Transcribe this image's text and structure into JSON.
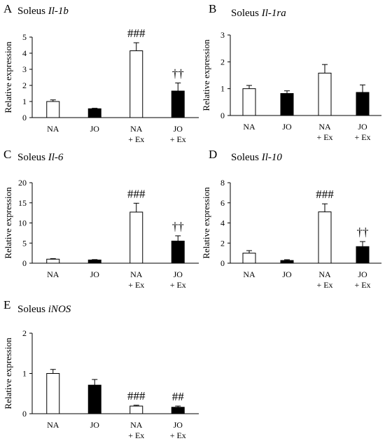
{
  "chart_data": [
    {
      "id": "A",
      "type": "bar",
      "panel_letter": "A",
      "title_prefix": "Soleus",
      "gene": "Il-1b",
      "ylabel": "Relative expression",
      "ylim": [
        0,
        5
      ],
      "yticks": [
        "0",
        "1",
        "2",
        "3",
        "4",
        "5"
      ],
      "categories": [
        [
          "NA",
          ""
        ],
        [
          "JO",
          ""
        ],
        [
          "NA",
          "+ Ex"
        ],
        [
          "JO",
          "+ Ex"
        ]
      ],
      "values": [
        1.0,
        0.55,
        4.15,
        1.65
      ],
      "errors": [
        0.1,
        0.03,
        0.5,
        0.5
      ],
      "fills": [
        "white",
        "black",
        "white",
        "black"
      ],
      "sig": [
        "",
        "",
        "###",
        "††"
      ]
    },
    {
      "id": "B",
      "type": "bar",
      "panel_letter": "B",
      "title_prefix": "Soleus",
      "gene": "Il-1ra",
      "ylabel": "Relative expression",
      "ylim": [
        0,
        3
      ],
      "yticks": [
        "0",
        "1",
        "2",
        "3"
      ],
      "categories": [
        [
          "NA",
          ""
        ],
        [
          "JO",
          ""
        ],
        [
          "NA",
          "+ Ex"
        ],
        [
          "JO",
          "+ Ex"
        ]
      ],
      "values": [
        1.0,
        0.82,
        1.58,
        0.86
      ],
      "errors": [
        0.12,
        0.1,
        0.32,
        0.28
      ],
      "fills": [
        "white",
        "black",
        "white",
        "black"
      ],
      "sig": [
        "",
        "",
        "",
        ""
      ]
    },
    {
      "id": "C",
      "type": "bar",
      "panel_letter": "C",
      "title_prefix": "Soleus",
      "gene": "Il-6",
      "ylabel": "Relative expression",
      "ylim": [
        0,
        20
      ],
      "yticks": [
        "0",
        "5",
        "10",
        "15",
        "20"
      ],
      "categories": [
        [
          "NA",
          ""
        ],
        [
          "JO",
          ""
        ],
        [
          "NA",
          "+ Ex"
        ],
        [
          "JO",
          "+ Ex"
        ]
      ],
      "values": [
        1.0,
        0.8,
        12.7,
        5.5
      ],
      "errors": [
        0.15,
        0.1,
        2.2,
        1.3
      ],
      "fills": [
        "white",
        "black",
        "white",
        "black"
      ],
      "sig": [
        "",
        "",
        "###",
        "††"
      ]
    },
    {
      "id": "D",
      "type": "bar",
      "panel_letter": "D",
      "title_prefix": "Soleus",
      "gene": "Il-10",
      "ylabel": "Relative expression",
      "ylim": [
        0,
        8
      ],
      "yticks": [
        "0",
        "2",
        "4",
        "6",
        "8"
      ],
      "categories": [
        [
          "NA",
          ""
        ],
        [
          "JO",
          ""
        ],
        [
          "NA",
          "+ Ex"
        ],
        [
          "JO",
          "+ Ex"
        ]
      ],
      "values": [
        1.0,
        0.27,
        5.1,
        1.65
      ],
      "errors": [
        0.25,
        0.08,
        0.8,
        0.5
      ],
      "fills": [
        "white",
        "black",
        "white",
        "black"
      ],
      "sig": [
        "",
        "",
        "###",
        "††"
      ]
    },
    {
      "id": "E",
      "type": "bar",
      "panel_letter": "E",
      "title_prefix": "Soleus",
      "gene": "iNOS",
      "ylabel": "Relative expression",
      "ylim": [
        0,
        2
      ],
      "yticks": [
        "0",
        "1",
        "2"
      ],
      "categories": [
        [
          "NA",
          ""
        ],
        [
          "JO",
          ""
        ],
        [
          "NA",
          "+ Ex"
        ],
        [
          "JO",
          "+ Ex"
        ]
      ],
      "values": [
        1.0,
        0.71,
        0.19,
        0.16
      ],
      "errors": [
        0.1,
        0.14,
        0.02,
        0.03
      ],
      "fills": [
        "white",
        "black",
        "white",
        "black"
      ],
      "sig": [
        "",
        "",
        "###",
        "##"
      ]
    }
  ]
}
